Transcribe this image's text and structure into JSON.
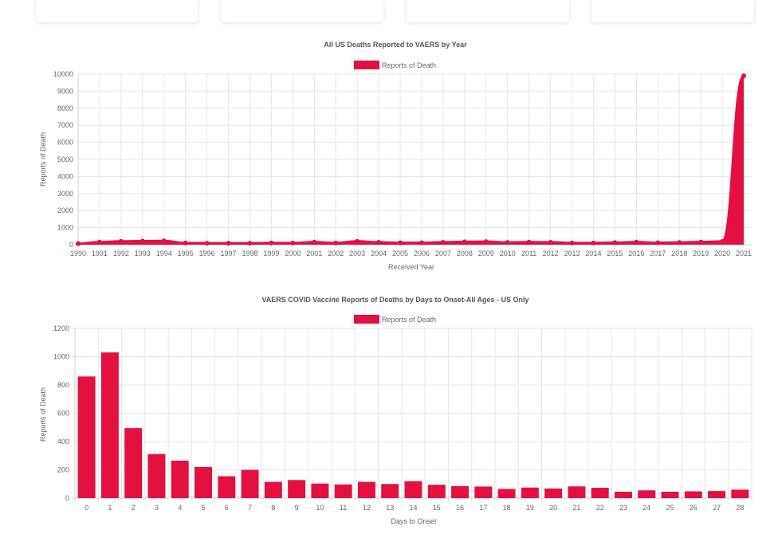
{
  "chart_data": [
    {
      "type": "area",
      "title": "All US Deaths Reported to VAERS by Year",
      "legend": "Reports of Death",
      "legend_position": "top",
      "xlabel": "Received Year",
      "ylabel": "Reports of Death",
      "color": "#e31040",
      "grid": true,
      "ylim": [
        0,
        10000
      ],
      "yticks": [
        0,
        1000,
        2000,
        3000,
        4000,
        5000,
        6000,
        7000,
        8000,
        9000,
        10000
      ],
      "categories": [
        "1990",
        "1991",
        "1992",
        "1993",
        "1994",
        "1995",
        "1996",
        "1997",
        "1998",
        "1999",
        "2000",
        "2001",
        "2002",
        "2003",
        "2004",
        "2005",
        "2006",
        "2007",
        "2008",
        "2009",
        "2010",
        "2011",
        "2012",
        "2013",
        "2014",
        "2015",
        "2016",
        "2017",
        "2018",
        "2019",
        "2020",
        "2021"
      ],
      "values": [
        60,
        150,
        200,
        210,
        220,
        100,
        90,
        90,
        90,
        100,
        100,
        150,
        100,
        200,
        140,
        110,
        110,
        140,
        170,
        180,
        130,
        150,
        140,
        100,
        100,
        120,
        150,
        110,
        130,
        160,
        190,
        9900
      ]
    },
    {
      "type": "bar",
      "title": "VAERS COVID Vaccine Reports of Deaths by Days to Onset-All Ages - US Only",
      "legend": "Reports of Death",
      "legend_position": "top",
      "xlabel": "Days to Onset",
      "ylabel": "Reports of Death",
      "color": "#e31040",
      "grid": true,
      "ylim": [
        0,
        1200
      ],
      "yticks": [
        0,
        200,
        400,
        600,
        800,
        1000,
        1200
      ],
      "categories": [
        "0",
        "1",
        "2",
        "3",
        "4",
        "5",
        "6",
        "7",
        "8",
        "9",
        "10",
        "11",
        "12",
        "13",
        "14",
        "15",
        "16",
        "17",
        "18",
        "19",
        "20",
        "21",
        "22",
        "23",
        "24",
        "25",
        "26",
        "27",
        "28"
      ],
      "values": [
        860,
        1030,
        495,
        312,
        265,
        220,
        155,
        200,
        115,
        128,
        103,
        97,
        115,
        100,
        120,
        95,
        85,
        82,
        65,
        75,
        68,
        83,
        73,
        45,
        55,
        45,
        48,
        50,
        60
      ]
    }
  ]
}
